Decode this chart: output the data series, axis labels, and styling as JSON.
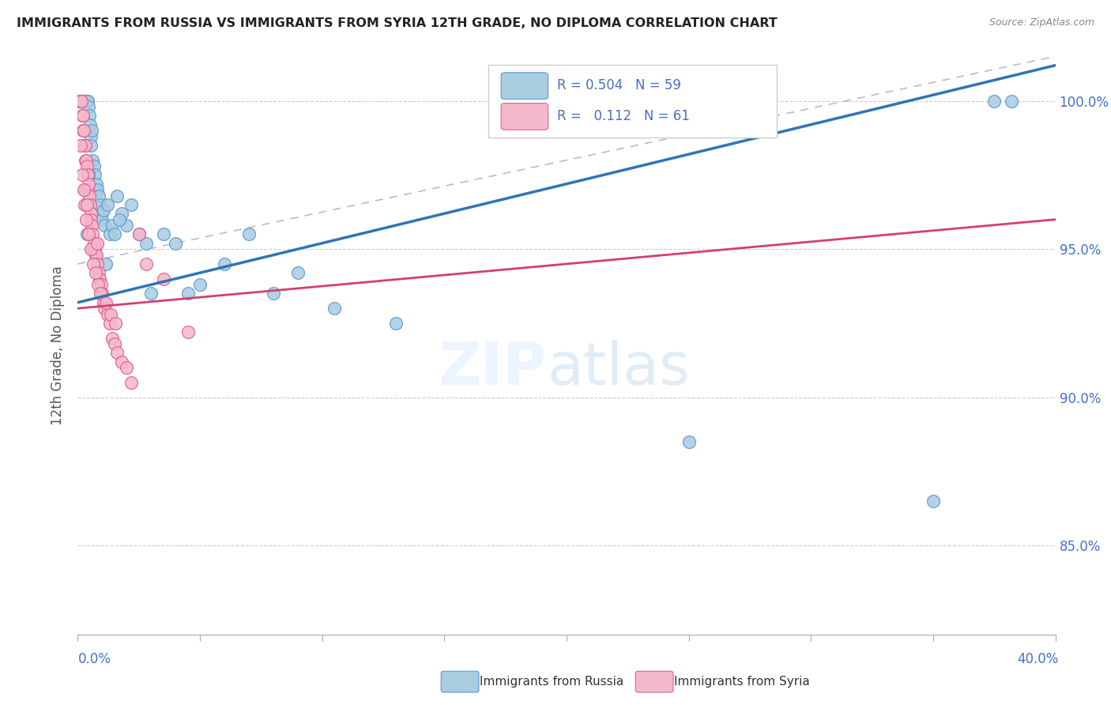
{
  "title": "IMMIGRANTS FROM RUSSIA VS IMMIGRANTS FROM SYRIA 12TH GRADE, NO DIPLOMA CORRELATION CHART",
  "source": "Source: ZipAtlas.com",
  "ylabel": "12th Grade, No Diploma",
  "x_min": 0.0,
  "x_max": 40.0,
  "y_min": 82.0,
  "y_max": 101.5,
  "y_ticks": [
    85.0,
    90.0,
    95.0,
    100.0
  ],
  "color_russia": "#a8cce0",
  "color_russia_edge": "#5b9bd5",
  "color_russia_line": "#2e75b6",
  "color_syria": "#f4b8cc",
  "color_syria_edge": "#e06090",
  "color_syria_line": "#d44070",
  "legend_russia_r": "0.504",
  "legend_russia_n": "59",
  "legend_syria_r": "0.112",
  "legend_syria_n": "61",
  "watermark_zip": "ZIP",
  "watermark_atlas": "atlas",
  "russia_line_x0": 0.0,
  "russia_line_y0": 93.2,
  "russia_line_x1": 40.0,
  "russia_line_y1": 101.2,
  "syria_line_x0": 0.0,
  "syria_line_y0": 93.0,
  "syria_line_x1": 40.0,
  "syria_line_y1": 96.0,
  "gray_line_x0": 0.0,
  "gray_line_y0": 94.5,
  "gray_line_x1": 40.0,
  "gray_line_y1": 101.5,
  "russia_x": [
    0.15,
    0.18,
    0.2,
    0.22,
    0.25,
    0.28,
    0.3,
    0.35,
    0.4,
    0.42,
    0.45,
    0.48,
    0.5,
    0.52,
    0.55,
    0.58,
    0.6,
    0.65,
    0.7,
    0.75,
    0.8,
    0.85,
    0.9,
    0.95,
    1.0,
    1.05,
    1.1,
    1.2,
    1.3,
    1.4,
    1.5,
    1.6,
    1.8,
    2.0,
    2.2,
    2.5,
    2.8,
    3.0,
    3.5,
    4.0,
    4.5,
    5.0,
    6.0,
    7.0,
    8.0,
    9.0,
    10.5,
    13.0,
    25.0,
    35.0,
    37.5,
    38.2,
    0.32,
    0.38,
    0.44,
    0.62,
    0.72,
    1.15,
    1.7
  ],
  "russia_y": [
    100.0,
    100.0,
    100.0,
    100.0,
    100.0,
    100.0,
    100.0,
    100.0,
    100.0,
    100.0,
    99.8,
    99.5,
    99.2,
    98.8,
    98.5,
    99.0,
    98.0,
    97.8,
    97.5,
    97.2,
    97.0,
    96.8,
    96.5,
    96.2,
    96.0,
    96.3,
    95.8,
    96.5,
    95.5,
    95.8,
    95.5,
    96.8,
    96.2,
    95.8,
    96.5,
    95.5,
    95.2,
    93.5,
    95.5,
    95.2,
    93.5,
    93.8,
    94.5,
    95.5,
    93.5,
    94.2,
    93.0,
    92.5,
    88.5,
    86.5,
    100.0,
    100.0,
    97.0,
    95.5,
    97.5,
    95.0,
    94.8,
    94.5,
    96.0
  ],
  "syria_x": [
    0.05,
    0.08,
    0.1,
    0.12,
    0.15,
    0.18,
    0.2,
    0.22,
    0.25,
    0.28,
    0.3,
    0.32,
    0.35,
    0.38,
    0.4,
    0.42,
    0.45,
    0.48,
    0.5,
    0.52,
    0.55,
    0.58,
    0.6,
    0.65,
    0.7,
    0.75,
    0.8,
    0.85,
    0.9,
    0.95,
    1.0,
    1.05,
    1.1,
    1.2,
    1.3,
    1.4,
    1.5,
    1.6,
    1.8,
    2.0,
    2.2,
    2.5,
    2.8,
    0.13,
    0.17,
    0.23,
    0.27,
    0.33,
    0.43,
    0.53,
    0.63,
    0.72,
    0.82,
    0.93,
    1.15,
    1.35,
    1.55,
    3.5,
    4.5,
    0.38,
    0.78
  ],
  "syria_y": [
    100.0,
    100.0,
    100.0,
    100.0,
    100.0,
    99.5,
    99.0,
    99.5,
    99.0,
    98.5,
    98.5,
    98.0,
    98.0,
    97.8,
    97.5,
    97.0,
    97.2,
    96.8,
    96.5,
    96.2,
    96.0,
    95.8,
    95.5,
    95.2,
    95.0,
    94.8,
    94.5,
    94.2,
    94.0,
    93.8,
    93.5,
    93.2,
    93.0,
    92.8,
    92.5,
    92.0,
    91.8,
    91.5,
    91.2,
    91.0,
    90.5,
    95.5,
    94.5,
    98.5,
    97.5,
    97.0,
    96.5,
    96.0,
    95.5,
    95.0,
    94.5,
    94.2,
    93.8,
    93.5,
    93.2,
    92.8,
    92.5,
    94.0,
    92.2,
    96.5,
    95.2
  ]
}
